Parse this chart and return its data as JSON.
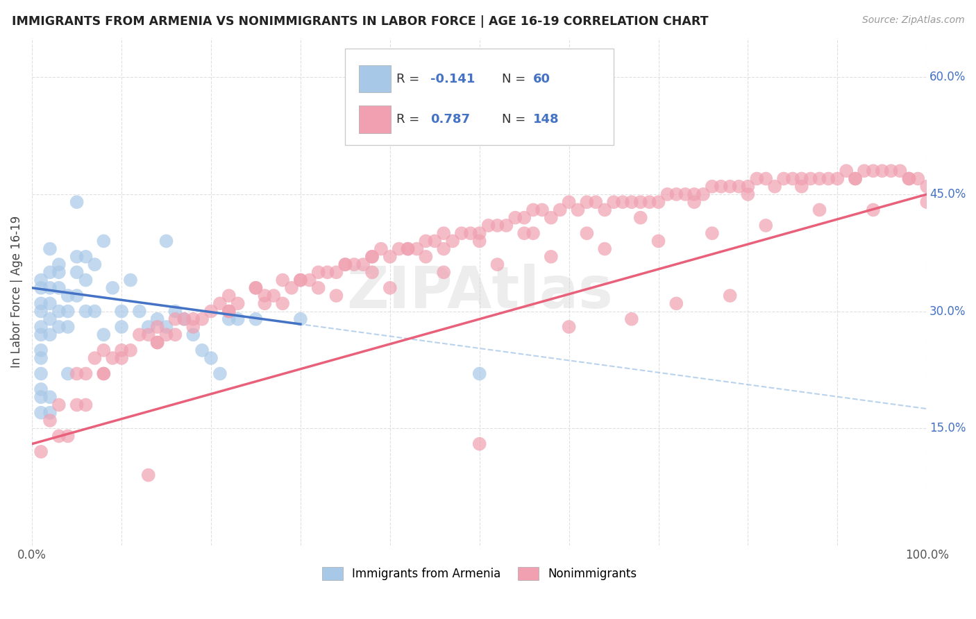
{
  "title": "IMMIGRANTS FROM ARMENIA VS NONIMMIGRANTS IN LABOR FORCE | AGE 16-19 CORRELATION CHART",
  "source": "Source: ZipAtlas.com",
  "ylabel": "In Labor Force | Age 16-19",
  "xlim": [
    0.0,
    1.0
  ],
  "ylim": [
    0.0,
    0.65
  ],
  "ytick_positions": [
    0.15,
    0.3,
    0.45,
    0.6
  ],
  "ytick_labels": [
    "15.0%",
    "30.0%",
    "45.0%",
    "60.0%"
  ],
  "blue_line_color": "#4472c4",
  "blue_dashed_color": "#a8c8e8",
  "pink_line_color": "#e8607a",
  "blue_scatter_color": "#a8c8e8",
  "pink_scatter_color": "#f0a0b0",
  "watermark": "ZIPAtlas",
  "background_color": "#ffffff",
  "grid_color": "#d8d8d8",
  "right_label_color": "#4472c4",
  "blue_intercept": 0.33,
  "blue_slope": -0.155,
  "pink_intercept": 0.13,
  "pink_slope": 0.32,
  "blue_x_data": [
    0.01,
    0.01,
    0.01,
    0.01,
    0.01,
    0.01,
    0.01,
    0.01,
    0.01,
    0.01,
    0.01,
    0.01,
    0.02,
    0.02,
    0.02,
    0.02,
    0.02,
    0.02,
    0.02,
    0.02,
    0.03,
    0.03,
    0.03,
    0.03,
    0.03,
    0.04,
    0.04,
    0.04,
    0.04,
    0.05,
    0.05,
    0.05,
    0.05,
    0.06,
    0.06,
    0.06,
    0.07,
    0.07,
    0.08,
    0.08,
    0.09,
    0.1,
    0.1,
    0.11,
    0.12,
    0.13,
    0.14,
    0.15,
    0.15,
    0.16,
    0.17,
    0.18,
    0.19,
    0.2,
    0.21,
    0.22,
    0.23,
    0.25,
    0.3,
    0.5
  ],
  "blue_y_data": [
    0.34,
    0.33,
    0.31,
    0.3,
    0.28,
    0.27,
    0.25,
    0.24,
    0.22,
    0.2,
    0.19,
    0.17,
    0.38,
    0.35,
    0.33,
    0.31,
    0.29,
    0.27,
    0.19,
    0.17,
    0.36,
    0.35,
    0.33,
    0.3,
    0.28,
    0.32,
    0.3,
    0.28,
    0.22,
    0.44,
    0.37,
    0.35,
    0.32,
    0.37,
    0.34,
    0.3,
    0.36,
    0.3,
    0.39,
    0.27,
    0.33,
    0.3,
    0.28,
    0.34,
    0.3,
    0.28,
    0.29,
    0.39,
    0.28,
    0.3,
    0.29,
    0.27,
    0.25,
    0.24,
    0.22,
    0.29,
    0.29,
    0.29,
    0.29,
    0.22
  ],
  "pink_x_data": [
    0.01,
    0.02,
    0.03,
    0.03,
    0.04,
    0.05,
    0.05,
    0.06,
    0.06,
    0.07,
    0.08,
    0.08,
    0.09,
    0.1,
    0.11,
    0.12,
    0.13,
    0.14,
    0.14,
    0.15,
    0.16,
    0.17,
    0.18,
    0.19,
    0.2,
    0.21,
    0.22,
    0.23,
    0.25,
    0.26,
    0.27,
    0.28,
    0.29,
    0.3,
    0.31,
    0.32,
    0.33,
    0.34,
    0.35,
    0.36,
    0.37,
    0.38,
    0.39,
    0.4,
    0.41,
    0.42,
    0.43,
    0.44,
    0.45,
    0.46,
    0.47,
    0.48,
    0.49,
    0.5,
    0.51,
    0.52,
    0.53,
    0.54,
    0.55,
    0.56,
    0.57,
    0.58,
    0.59,
    0.6,
    0.61,
    0.62,
    0.63,
    0.64,
    0.65,
    0.66,
    0.67,
    0.68,
    0.69,
    0.7,
    0.71,
    0.72,
    0.73,
    0.74,
    0.75,
    0.76,
    0.77,
    0.78,
    0.79,
    0.8,
    0.81,
    0.82,
    0.83,
    0.84,
    0.85,
    0.86,
    0.87,
    0.88,
    0.89,
    0.9,
    0.91,
    0.92,
    0.93,
    0.94,
    0.95,
    0.96,
    0.97,
    0.98,
    0.99,
    1.0,
    0.35,
    0.38,
    0.42,
    0.46,
    0.5,
    0.55,
    0.25,
    0.5,
    0.18,
    0.13,
    0.22,
    0.3,
    0.14,
    0.1,
    0.16,
    0.08,
    0.22,
    0.28,
    0.34,
    0.4,
    0.46,
    0.52,
    0.58,
    0.64,
    0.7,
    0.76,
    0.82,
    0.88,
    0.94,
    1.0,
    0.26,
    0.32,
    0.38,
    0.44,
    0.62,
    0.56,
    0.68,
    0.74,
    0.8,
    0.86,
    0.92,
    0.98,
    0.6,
    0.67,
    0.72,
    0.78
  ],
  "pink_y_data": [
    0.12,
    0.16,
    0.14,
    0.18,
    0.14,
    0.18,
    0.22,
    0.18,
    0.22,
    0.24,
    0.22,
    0.25,
    0.24,
    0.25,
    0.25,
    0.27,
    0.27,
    0.26,
    0.28,
    0.27,
    0.29,
    0.29,
    0.28,
    0.29,
    0.3,
    0.31,
    0.3,
    0.31,
    0.33,
    0.32,
    0.32,
    0.34,
    0.33,
    0.34,
    0.34,
    0.35,
    0.35,
    0.35,
    0.36,
    0.36,
    0.36,
    0.37,
    0.38,
    0.37,
    0.38,
    0.38,
    0.38,
    0.39,
    0.39,
    0.4,
    0.39,
    0.4,
    0.4,
    0.4,
    0.41,
    0.41,
    0.41,
    0.42,
    0.42,
    0.43,
    0.43,
    0.42,
    0.43,
    0.44,
    0.43,
    0.44,
    0.44,
    0.43,
    0.44,
    0.44,
    0.44,
    0.44,
    0.44,
    0.44,
    0.45,
    0.45,
    0.45,
    0.45,
    0.45,
    0.46,
    0.46,
    0.46,
    0.46,
    0.46,
    0.47,
    0.47,
    0.46,
    0.47,
    0.47,
    0.47,
    0.47,
    0.47,
    0.47,
    0.47,
    0.48,
    0.47,
    0.48,
    0.48,
    0.48,
    0.48,
    0.48,
    0.47,
    0.47,
    0.46,
    0.36,
    0.37,
    0.38,
    0.38,
    0.39,
    0.4,
    0.33,
    0.13,
    0.29,
    0.09,
    0.32,
    0.34,
    0.26,
    0.24,
    0.27,
    0.22,
    0.3,
    0.31,
    0.32,
    0.33,
    0.35,
    0.36,
    0.37,
    0.38,
    0.39,
    0.4,
    0.41,
    0.43,
    0.43,
    0.44,
    0.31,
    0.33,
    0.35,
    0.37,
    0.4,
    0.4,
    0.42,
    0.44,
    0.45,
    0.46,
    0.47,
    0.47,
    0.28,
    0.29,
    0.31,
    0.32
  ]
}
